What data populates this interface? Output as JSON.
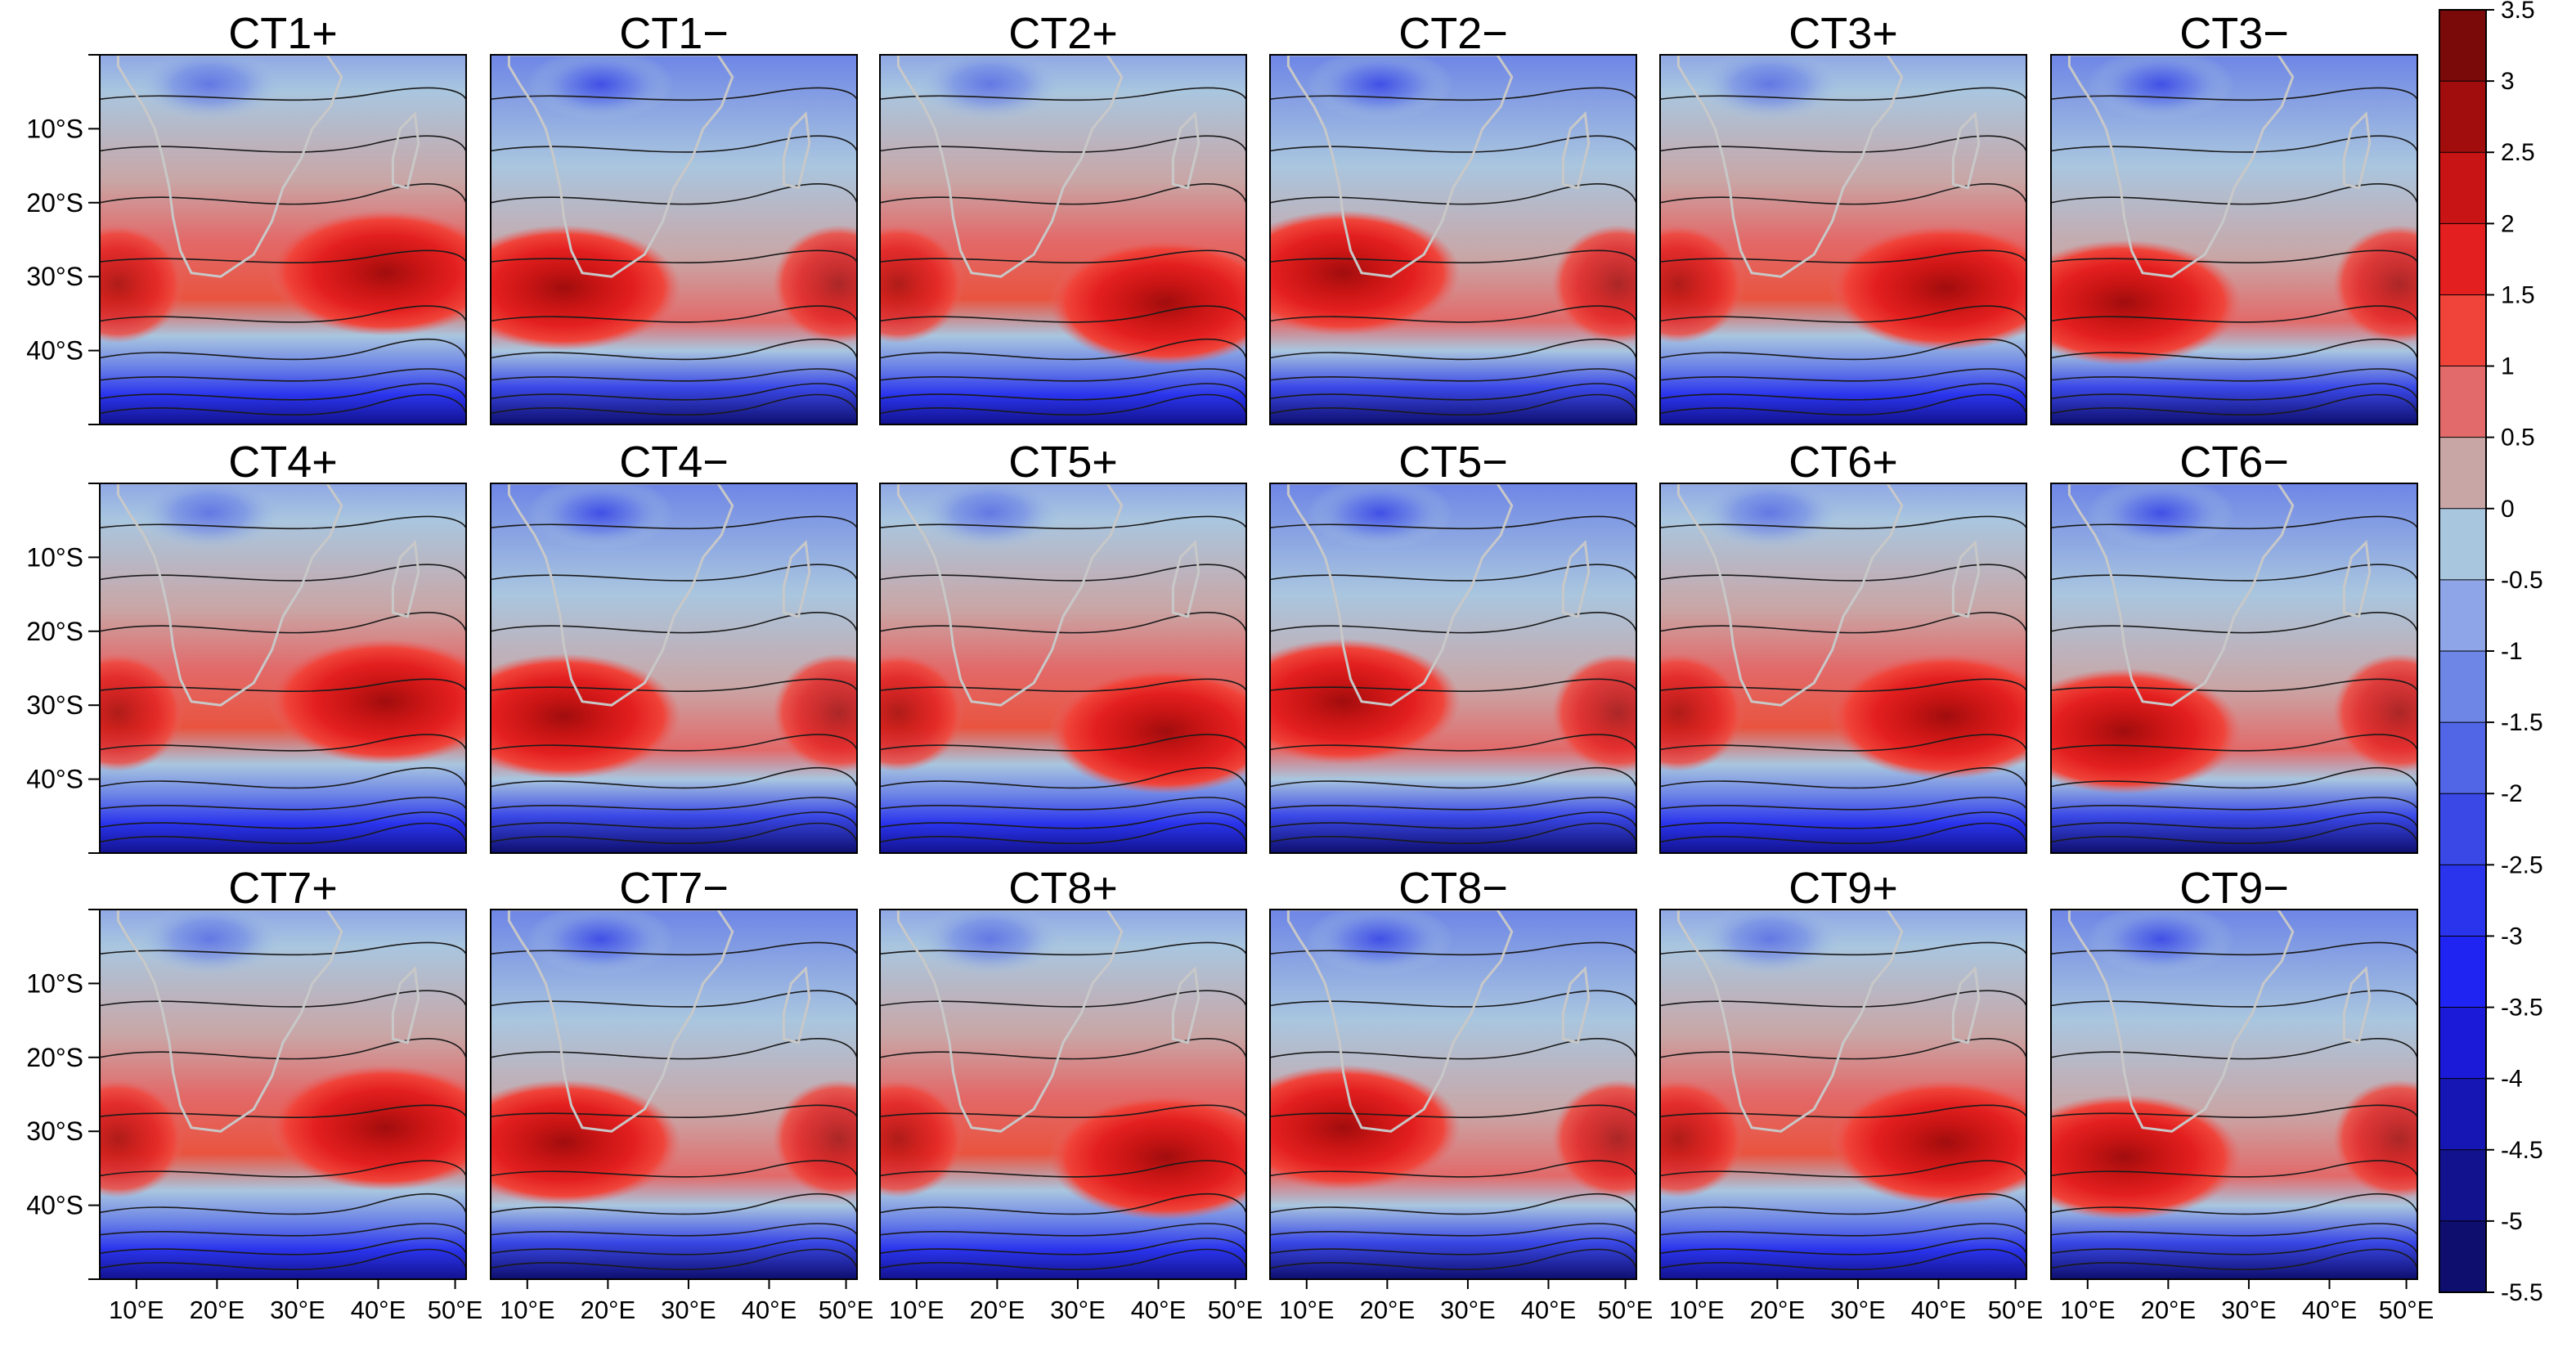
{
  "figure": {
    "panel_titles": [
      [
        "CT1+",
        "CT1−",
        "CT2+",
        "CT2−",
        "CT3+",
        "CT3−"
      ],
      [
        "CT4+",
        "CT4−",
        "CT5+",
        "CT5−",
        "CT6+",
        "CT6−"
      ],
      [
        "CT7+",
        "CT7−",
        "CT8+",
        "CT8−",
        "CT9+",
        "CT9−"
      ]
    ],
    "lat_labels": [
      "10°S",
      "20°S",
      "30°S",
      "40°S"
    ],
    "lon_labels": [
      "10°E",
      "20°E",
      "30°E",
      "40°E",
      "50°E"
    ],
    "colorbar": {
      "ticks": [
        "3.5",
        "3",
        "2.5",
        "2",
        "1.5",
        "1",
        "0.5",
        "0",
        "-0.5",
        "-1",
        "-1.5",
        "-2",
        "-2.5",
        "-3",
        "-3.5",
        "-4",
        "-4.5",
        "-5",
        "-5.5"
      ],
      "colors": [
        "#7a0a0a",
        "#a10d0d",
        "#c81414",
        "#e31f1f",
        "#f0443a",
        "#e26a6a",
        "#c9a6a6",
        "#a9c6df",
        "#8ea6e8",
        "#6e86e6",
        "#5066e6",
        "#3a48e6",
        "#2a34ec",
        "#2024f2",
        "#1a1ad8",
        "#1616b4",
        "#12128e",
        "#0e0e6e"
      ]
    },
    "map_colors": {
      "land_outline": "#c8c8c8",
      "contour": "#1a1a1a",
      "frame": "#000000"
    }
  }
}
